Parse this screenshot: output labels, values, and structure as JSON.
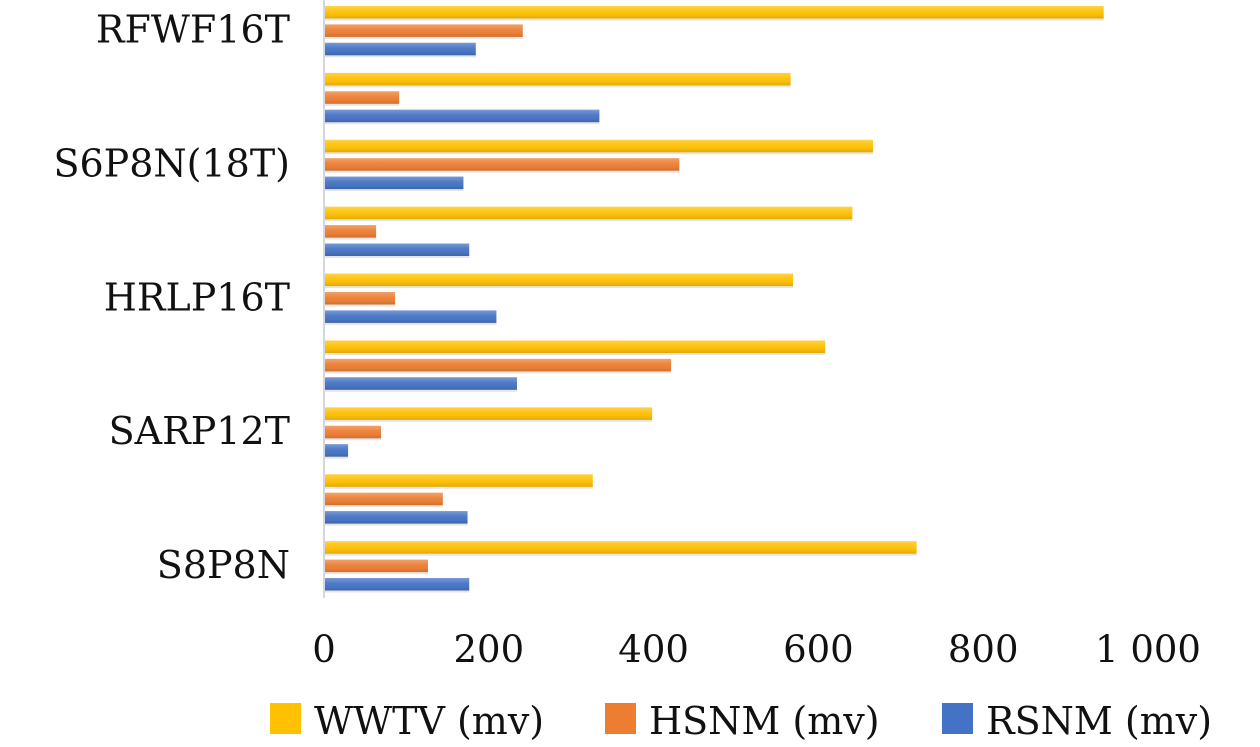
{
  "chart_data": {
    "type": "bar",
    "orientation": "horizontal",
    "categories": [
      "RFWF16T",
      "",
      "S6P8N(18T)",
      "",
      "HRLP16T",
      "",
      "SARP12T",
      "",
      "S8P8N"
    ],
    "series": [
      {
        "name": "WWTV (mv)",
        "color": "#FFC000",
        "values": [
          945,
          565,
          665,
          640,
          568,
          607,
          397,
          325,
          718
        ]
      },
      {
        "name": "HSNM (mv)",
        "color": "#ED7D31",
        "values": [
          240,
          90,
          430,
          62,
          85,
          420,
          68,
          143,
          125
        ]
      },
      {
        "name": "RSNM (mv)",
        "color": "#4472C4",
        "values": [
          183,
          333,
          168,
          175,
          208,
          233,
          28,
          173,
          175
        ]
      }
    ],
    "xlim": [
      0,
      1000
    ],
    "x_ticks": [
      {
        "value": 0,
        "label": "0"
      },
      {
        "value": 200,
        "label": "200"
      },
      {
        "value": 400,
        "label": "400"
      },
      {
        "value": 600,
        "label": "600"
      },
      {
        "value": 800,
        "label": "800"
      },
      {
        "value": 1000,
        "label": "1 000"
      }
    ],
    "title": "",
    "xlabel": "",
    "ylabel": "",
    "grid": false,
    "legend_position": "bottom"
  }
}
